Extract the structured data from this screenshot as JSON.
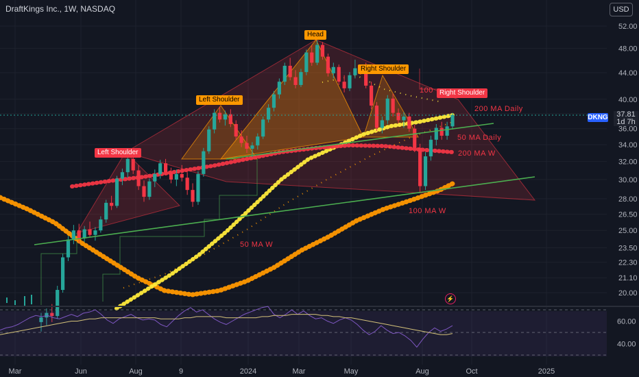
{
  "header": {
    "title": "DraftKings Inc., 1W, NASDAQ",
    "currency_button": "USD",
    "ticker": "DKNG",
    "last_price": "37.81",
    "countdown": "1d 7h"
  },
  "chart_data": {
    "type": "candlestick",
    "title": "DraftKings Inc., 1W, NASDAQ",
    "y_ticks": [
      "52.00",
      "48.00",
      "44.00",
      "40.00",
      "38.00",
      "36.00",
      "34.00",
      "32.00",
      "30.00",
      "28.00",
      "26.50",
      "25.00",
      "23.50",
      "22.30",
      "21.10",
      "20.00"
    ],
    "x_ticks": [
      "Mar",
      "Jun",
      "Aug",
      "9",
      "2024",
      "Mar",
      "May",
      "Aug",
      "Oct",
      "2025"
    ],
    "rsi_ticks": [
      "60.00",
      "40.00"
    ],
    "annotations": {
      "head": "Head",
      "left_shoulder_1": "Left Shoulder",
      "left_shoulder_2": "Left Shoulder",
      "right_shoulder_1": "Right Shoulder",
      "right_shoulder_2": "Right Shoulder",
      "hundred": "100"
    },
    "ma_labels": {
      "ma200_daily": "200 MA Daily",
      "ma50_daily": "50 MA Daily",
      "ma200_weekly": "200 MA W",
      "ma100_weekly": "100 MA W",
      "ma50_weekly": "50 MA W"
    },
    "colors": {
      "up": "#26a69a",
      "down": "#f23645",
      "ma50w": "#ff9800",
      "ma100w": "#ff9800",
      "ma200w": "#f23645",
      "ma50d": "#ffeb3b",
      "trendline": "#4caf50",
      "rsi_line": "#7e57c2",
      "rsi_ma": "#d4c27a"
    },
    "candles": [
      {
        "o": 18.0,
        "h": 18.6,
        "l": 17.4,
        "c": 18.3
      },
      {
        "o": 18.3,
        "h": 18.9,
        "l": 17.8,
        "c": 18.6
      },
      {
        "o": 18.6,
        "h": 19.2,
        "l": 18.0,
        "c": 18.4
      },
      {
        "o": 18.4,
        "h": 20.5,
        "l": 18.2,
        "c": 20.2
      },
      {
        "o": 20.2,
        "h": 23.0,
        "l": 20.0,
        "c": 22.7
      },
      {
        "o": 22.7,
        "h": 24.5,
        "l": 22.4,
        "c": 24.2
      },
      {
        "o": 24.2,
        "h": 25.5,
        "l": 23.8,
        "c": 25.0
      },
      {
        "o": 25.0,
        "h": 25.6,
        "l": 23.9,
        "c": 24.3
      },
      {
        "o": 24.3,
        "h": 25.4,
        "l": 24.0,
        "c": 25.1
      },
      {
        "o": 25.1,
        "h": 25.8,
        "l": 24.4,
        "c": 24.6
      },
      {
        "o": 24.6,
        "h": 25.3,
        "l": 24.1,
        "c": 25.0
      },
      {
        "o": 25.0,
        "h": 26.3,
        "l": 24.8,
        "c": 26.0
      },
      {
        "o": 26.0,
        "h": 27.9,
        "l": 25.7,
        "c": 27.6
      },
      {
        "o": 27.6,
        "h": 28.3,
        "l": 26.9,
        "c": 27.3
      },
      {
        "o": 27.3,
        "h": 30.4,
        "l": 27.1,
        "c": 30.1
      },
      {
        "o": 30.1,
        "h": 31.2,
        "l": 29.4,
        "c": 30.8
      },
      {
        "o": 30.8,
        "h": 32.6,
        "l": 30.2,
        "c": 32.3
      },
      {
        "o": 32.3,
        "h": 32.9,
        "l": 30.6,
        "c": 31.0
      },
      {
        "o": 31.0,
        "h": 31.6,
        "l": 28.9,
        "c": 29.3
      },
      {
        "o": 29.3,
        "h": 29.9,
        "l": 27.7,
        "c": 28.2
      },
      {
        "o": 28.2,
        "h": 30.1,
        "l": 27.9,
        "c": 29.8
      },
      {
        "o": 29.8,
        "h": 31.1,
        "l": 29.2,
        "c": 30.6
      },
      {
        "o": 30.6,
        "h": 32.2,
        "l": 30.1,
        "c": 31.8
      },
      {
        "o": 31.8,
        "h": 32.3,
        "l": 30.5,
        "c": 30.8
      },
      {
        "o": 30.8,
        "h": 31.3,
        "l": 29.6,
        "c": 30.0
      },
      {
        "o": 30.0,
        "h": 31.1,
        "l": 29.3,
        "c": 30.6
      },
      {
        "o": 30.6,
        "h": 31.6,
        "l": 29.8,
        "c": 30.2
      },
      {
        "o": 30.2,
        "h": 30.8,
        "l": 28.4,
        "c": 28.9
      },
      {
        "o": 28.9,
        "h": 29.6,
        "l": 27.2,
        "c": 27.7
      },
      {
        "o": 27.7,
        "h": 30.9,
        "l": 27.4,
        "c": 30.6
      },
      {
        "o": 30.6,
        "h": 33.6,
        "l": 30.3,
        "c": 33.2
      },
      {
        "o": 33.2,
        "h": 36.3,
        "l": 32.9,
        "c": 35.9
      },
      {
        "o": 35.9,
        "h": 38.6,
        "l": 35.4,
        "c": 38.1
      },
      {
        "o": 38.1,
        "h": 38.9,
        "l": 36.8,
        "c": 37.2
      },
      {
        "o": 37.2,
        "h": 38.4,
        "l": 36.4,
        "c": 37.9
      },
      {
        "o": 37.9,
        "h": 38.6,
        "l": 36.2,
        "c": 36.6
      },
      {
        "o": 36.6,
        "h": 37.1,
        "l": 34.6,
        "c": 35.0
      },
      {
        "o": 35.0,
        "h": 35.8,
        "l": 33.7,
        "c": 34.2
      },
      {
        "o": 34.2,
        "h": 35.1,
        "l": 33.0,
        "c": 33.5
      },
      {
        "o": 33.5,
        "h": 34.3,
        "l": 32.5,
        "c": 33.9
      },
      {
        "o": 33.9,
        "h": 35.4,
        "l": 33.4,
        "c": 35.0
      },
      {
        "o": 35.0,
        "h": 37.6,
        "l": 34.7,
        "c": 37.2
      },
      {
        "o": 37.2,
        "h": 39.3,
        "l": 36.8,
        "c": 38.8
      },
      {
        "o": 38.8,
        "h": 41.2,
        "l": 38.3,
        "c": 40.7
      },
      {
        "o": 40.7,
        "h": 43.1,
        "l": 40.1,
        "c": 42.6
      },
      {
        "o": 42.6,
        "h": 45.6,
        "l": 42.1,
        "c": 45.1
      },
      {
        "o": 45.1,
        "h": 46.4,
        "l": 42.8,
        "c": 43.3
      },
      {
        "o": 43.3,
        "h": 44.4,
        "l": 41.6,
        "c": 42.1
      },
      {
        "o": 42.1,
        "h": 44.6,
        "l": 41.8,
        "c": 44.1
      },
      {
        "o": 44.1,
        "h": 47.8,
        "l": 43.6,
        "c": 47.3
      },
      {
        "o": 47.3,
        "h": 48.6,
        "l": 45.1,
        "c": 45.6
      },
      {
        "o": 45.6,
        "h": 49.4,
        "l": 45.2,
        "c": 48.6
      },
      {
        "o": 48.6,
        "h": 49.1,
        "l": 46.1,
        "c": 46.6
      },
      {
        "o": 46.6,
        "h": 47.1,
        "l": 43.4,
        "c": 43.9
      },
      {
        "o": 43.9,
        "h": 45.6,
        "l": 43.1,
        "c": 44.9
      },
      {
        "o": 44.9,
        "h": 45.3,
        "l": 42.1,
        "c": 42.6
      },
      {
        "o": 42.6,
        "h": 43.6,
        "l": 41.0,
        "c": 41.6
      },
      {
        "o": 41.6,
        "h": 44.1,
        "l": 41.2,
        "c": 43.6
      },
      {
        "o": 43.6,
        "h": 46.1,
        "l": 43.1,
        "c": 44.7
      },
      {
        "o": 44.7,
        "h": 45.3,
        "l": 43.7,
        "c": 44.2
      },
      {
        "o": 44.2,
        "h": 45.6,
        "l": 41.6,
        "c": 42.0
      },
      {
        "o": 42.0,
        "h": 42.6,
        "l": 38.6,
        "c": 39.1
      },
      {
        "o": 39.1,
        "h": 39.6,
        "l": 35.7,
        "c": 36.1
      },
      {
        "o": 36.1,
        "h": 37.6,
        "l": 35.4,
        "c": 37.1
      },
      {
        "o": 37.1,
        "h": 40.6,
        "l": 36.6,
        "c": 40.1
      },
      {
        "o": 40.1,
        "h": 40.8,
        "l": 37.6,
        "c": 38.1
      },
      {
        "o": 38.1,
        "h": 38.7,
        "l": 36.7,
        "c": 37.1
      },
      {
        "o": 37.1,
        "h": 38.2,
        "l": 36.1,
        "c": 37.6
      },
      {
        "o": 37.6,
        "h": 38.1,
        "l": 35.6,
        "c": 36.0
      },
      {
        "o": 36.0,
        "h": 36.5,
        "l": 33.1,
        "c": 33.6
      },
      {
        "o": 33.6,
        "h": 34.1,
        "l": 28.6,
        "c": 29.3
      },
      {
        "o": 29.3,
        "h": 33.1,
        "l": 28.9,
        "c": 32.6
      },
      {
        "o": 32.6,
        "h": 35.1,
        "l": 32.1,
        "c": 34.6
      },
      {
        "o": 34.6,
        "h": 36.6,
        "l": 33.9,
        "c": 36.1
      },
      {
        "o": 36.1,
        "h": 36.9,
        "l": 34.6,
        "c": 35.1
      },
      {
        "o": 35.1,
        "h": 36.9,
        "l": 34.6,
        "c": 36.3
      },
      {
        "o": 36.3,
        "h": 38.1,
        "l": 35.9,
        "c": 37.81
      }
    ]
  },
  "rsi": {
    "values": [
      52,
      54,
      55,
      57,
      60,
      63,
      65,
      64,
      65,
      63,
      62,
      64,
      66,
      64,
      67,
      68,
      70,
      66,
      61,
      58,
      62,
      64,
      66,
      63,
      61,
      62,
      61,
      57,
      55,
      60,
      65,
      69,
      72,
      68,
      70,
      66,
      62,
      59,
      57,
      60,
      63,
      66,
      68,
      70,
      72,
      73,
      66,
      63,
      66,
      70,
      66,
      69,
      65,
      62,
      63,
      60,
      58,
      61,
      63,
      61,
      57,
      52,
      48,
      51,
      56,
      52,
      49,
      50,
      47,
      43,
      37,
      44,
      50,
      54,
      51,
      53,
      56
    ],
    "ma": [
      48,
      49,
      50,
      51,
      52,
      53,
      54,
      55,
      56,
      57,
      58,
      59,
      60,
      60,
      61,
      62,
      62,
      63,
      63,
      63,
      63,
      63,
      63,
      63,
      63,
      63,
      63,
      62,
      62,
      62,
      62,
      63,
      63,
      64,
      64,
      64,
      64,
      64,
      63,
      63,
      63,
      63,
      63,
      63,
      64,
      64,
      65,
      65,
      65,
      66,
      66,
      66,
      66,
      66,
      65,
      65,
      64,
      64,
      63,
      63,
      62,
      61,
      60,
      59,
      58,
      57,
      56,
      55,
      54,
      53,
      52,
      51,
      50,
      49,
      48,
      48,
      49
    ]
  }
}
